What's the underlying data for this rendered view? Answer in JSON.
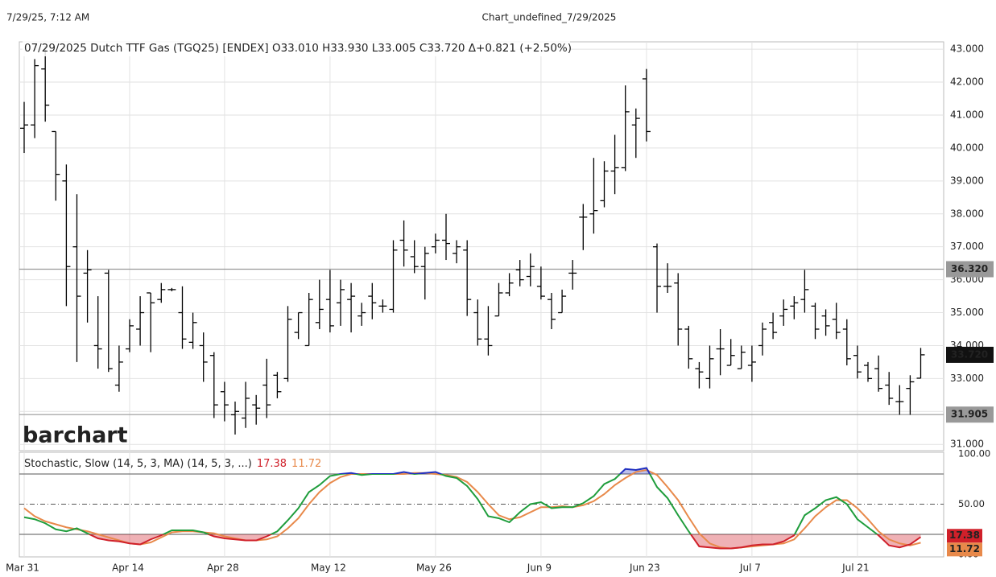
{
  "header": {
    "timestamp": "7/29/25, 7:12 AM",
    "title": "Chart_undefined_7/29/2025"
  },
  "chart_data": [
    {
      "type": "ohlc",
      "title": "07/29/2025 Dutch TTF Gas (TGQ25) [ENDEX] O33.010 H33.930 L33.005 C33.720 Δ+0.821 (+2.50%)",
      "watermark": "barchart",
      "color": "#000000",
      "grid": true,
      "categories": [
        "Mar 31",
        null,
        null,
        null,
        null,
        null,
        null,
        null,
        null,
        null,
        "Apr 14",
        null,
        null,
        null,
        null,
        null,
        null,
        null,
        null,
        "Apr 28",
        null,
        null,
        null,
        null,
        null,
        null,
        null,
        null,
        null,
        "May 12",
        null,
        null,
        null,
        null,
        null,
        null,
        null,
        null,
        null,
        "May 26",
        null,
        null,
        null,
        null,
        null,
        null,
        null,
        null,
        null,
        "Jun 9",
        null,
        null,
        null,
        null,
        null,
        null,
        null,
        null,
        null,
        "Jun 23",
        null,
        null,
        null,
        null,
        null,
        null,
        null,
        null,
        null,
        "Jul 7",
        null,
        null,
        null,
        null,
        null,
        null,
        null,
        null,
        null,
        "Jul 21",
        null,
        null,
        null,
        null,
        null,
        null
      ],
      "open": [
        40.6,
        40.7,
        42.4,
        40.5,
        39.0,
        37.0,
        36.2,
        34.0,
        36.2,
        32.8,
        33.9,
        34.5,
        35.6,
        35.4,
        35.7,
        35.0,
        34.1,
        34.0,
        33.7,
        32.6,
        31.9,
        31.8,
        32.2,
        32.8,
        33.1,
        33.0,
        34.4,
        34.0,
        34.7,
        35.4,
        35.3,
        35.4,
        34.9,
        35.5,
        35.2,
        35.1,
        37.2,
        36.7,
        36.4,
        37.0,
        37.2,
        36.8,
        36.9,
        35.0,
        34.2,
        34.9,
        35.6,
        36.3,
        36.1,
        35.8,
        35.4,
        35.0,
        36.2,
        37.9,
        38.0,
        38.4,
        39.3,
        39.4,
        40.7,
        42.1,
        37.0,
        35.8,
        35.9,
        34.5,
        33.3,
        33.0,
        33.9,
        33.4,
        33.3,
        33.4,
        34.0,
        34.7,
        34.9,
        35.2,
        35.4,
        35.2,
        34.9,
        34.8,
        34.5,
        33.7,
        33.4,
        33.3,
        32.8,
        32.3,
        32.7,
        33.01
      ],
      "high": [
        41.4,
        42.7,
        43.1,
        40.5,
        39.5,
        38.6,
        36.9,
        35.5,
        36.3,
        34.0,
        34.8,
        35.5,
        35.6,
        35.9,
        35.75,
        35.8,
        35.0,
        34.4,
        33.8,
        32.9,
        32.3,
        32.9,
        32.5,
        33.6,
        33.2,
        35.2,
        35.0,
        35.6,
        36.0,
        36.3,
        36.0,
        35.9,
        35.3,
        35.9,
        35.4,
        37.2,
        37.8,
        37.2,
        37.0,
        37.4,
        38.0,
        37.2,
        37.2,
        35.4,
        35.2,
        35.9,
        36.2,
        36.6,
        36.8,
        36.4,
        35.6,
        35.7,
        36.6,
        38.3,
        39.7,
        39.6,
        40.4,
        41.9,
        41.2,
        42.4,
        37.1,
        36.5,
        36.2,
        34.6,
        33.5,
        34.0,
        34.5,
        34.2,
        34.0,
        34.0,
        34.7,
        35.0,
        35.4,
        35.5,
        36.3,
        35.3,
        35.1,
        35.3,
        34.8,
        34.0,
        33.5,
        33.7,
        33.2,
        32.8,
        33.1,
        33.93
      ],
      "low": [
        39.85,
        40.3,
        40.8,
        38.4,
        35.2,
        33.5,
        34.7,
        33.3,
        33.2,
        32.6,
        33.8,
        34.0,
        33.8,
        35.3,
        35.65,
        33.9,
        33.9,
        32.9,
        31.8,
        31.7,
        31.3,
        31.5,
        31.6,
        31.8,
        32.4,
        32.9,
        34.2,
        34.0,
        34.5,
        34.4,
        34.6,
        34.4,
        34.6,
        34.8,
        35.0,
        35.0,
        36.4,
        36.2,
        35.4,
        36.8,
        36.6,
        36.5,
        34.9,
        34.0,
        33.7,
        34.9,
        35.5,
        35.8,
        35.8,
        35.4,
        34.5,
        35.0,
        35.7,
        36.9,
        37.4,
        38.2,
        38.6,
        39.3,
        39.7,
        40.2,
        35.0,
        35.6,
        34.0,
        33.3,
        32.7,
        32.7,
        33.1,
        33.4,
        33.3,
        32.9,
        33.7,
        34.2,
        34.6,
        34.8,
        35.0,
        34.2,
        34.3,
        34.2,
        33.4,
        33.0,
        32.9,
        32.6,
        32.2,
        31.9,
        31.9,
        33.005
      ],
      "close": [
        40.7,
        42.5,
        41.3,
        39.2,
        36.4,
        35.5,
        36.3,
        33.9,
        33.3,
        33.5,
        34.6,
        35.0,
        35.3,
        35.7,
        35.7,
        34.2,
        34.7,
        33.5,
        32.2,
        32.2,
        32.0,
        32.4,
        32.1,
        32.2,
        32.6,
        34.8,
        35.0,
        35.4,
        35.1,
        34.6,
        35.7,
        35.5,
        35.0,
        35.3,
        35.2,
        36.9,
        36.9,
        36.4,
        36.8,
        37.2,
        37.1,
        37.0,
        35.4,
        34.2,
        34.0,
        35.6,
        35.9,
        36.0,
        36.4,
        35.5,
        34.8,
        35.5,
        36.2,
        37.9,
        38.1,
        39.3,
        39.4,
        41.1,
        40.9,
        40.5,
        35.8,
        35.8,
        34.5,
        33.6,
        33.2,
        33.6,
        33.9,
        33.7,
        33.8,
        33.5,
        34.5,
        34.4,
        35.1,
        35.3,
        35.7,
        34.5,
        34.6,
        34.4,
        33.6,
        33.2,
        33.0,
        32.7,
        32.4,
        32.3,
        32.9,
        33.72
      ],
      "ylim": [
        30.81,
        43.15
      ],
      "yticks": [
        {
          "value": 31,
          "label": "31.000"
        },
        {
          "value": 32,
          "label": "32.000"
        },
        {
          "value": 33,
          "label": "33.000"
        },
        {
          "value": 34,
          "label": "34.000"
        },
        {
          "value": 35,
          "label": "35.000"
        },
        {
          "value": 36,
          "label": "36.000"
        },
        {
          "value": 37,
          "label": "37.000"
        },
        {
          "value": 38,
          "label": "38.000"
        },
        {
          "value": 39,
          "label": "39.000"
        },
        {
          "value": 40,
          "label": "40.000"
        },
        {
          "value": 41,
          "label": "41.000"
        },
        {
          "value": 42,
          "label": "42.000"
        },
        {
          "value": 43,
          "label": "43.000"
        }
      ],
      "reference_lines": [
        {
          "value": 36.32,
          "label": "36.320"
        },
        {
          "value": 31.905,
          "label": "31.905"
        }
      ],
      "reference_color": "#999999",
      "last_price": {
        "value": 33.72,
        "label": "33.720"
      }
    },
    {
      "type": "stochastic",
      "title": "Stochastic, Slow (14, 5, 3, MA)  (14, 5, 3, ...)",
      "ylim": [
        -2.4,
        101.6
      ],
      "yticks": [
        {
          "value": 0,
          "label": "0.00"
        },
        {
          "value": 50,
          "label": "50.00"
        },
        {
          "value": 100,
          "label": "100.00"
        }
      ],
      "overbought": 80,
      "oversold": 20,
      "midline": 50,
      "overbought_color": "#2030c0",
      "oversold_color": "#d0202a",
      "series": [
        {
          "color": "#1f9d3c",
          "values": [
            37,
            35,
            31,
            25,
            23,
            26,
            21,
            16,
            14,
            13,
            11,
            10,
            15,
            19,
            24,
            24,
            24,
            22,
            18,
            16,
            15,
            14,
            14,
            18,
            23,
            34,
            46,
            62,
            69,
            78,
            80,
            81,
            79,
            80,
            80,
            80,
            82,
            80,
            81,
            82,
            78,
            76,
            68,
            55,
            38,
            36,
            32,
            42,
            50,
            52,
            46,
            47,
            47,
            51,
            58,
            70,
            75,
            85,
            84,
            86,
            67,
            56,
            39,
            23,
            8,
            7,
            6,
            6,
            7,
            9,
            10,
            10,
            13,
            19,
            39,
            46,
            54,
            57,
            50,
            35,
            27,
            19,
            9,
            7,
            10,
            17.38
          ]
        },
        {
          "color": "#e8894a",
          "values": [
            46,
            38,
            33,
            30,
            27,
            25,
            23,
            20,
            17,
            14,
            11,
            10,
            12,
            17,
            22,
            23,
            23,
            22,
            21,
            18,
            16,
            14,
            14,
            15,
            18,
            26,
            36,
            50,
            62,
            71,
            77,
            80,
            80,
            80,
            80,
            80,
            80,
            81,
            81,
            80,
            79,
            77,
            72,
            62,
            50,
            39,
            35,
            37,
            42,
            47,
            47,
            48,
            47,
            49,
            53,
            60,
            69,
            76,
            82,
            84,
            79,
            67,
            54,
            37,
            21,
            11,
            7,
            6,
            7,
            8,
            9,
            10,
            11,
            15,
            26,
            38,
            47,
            54,
            54,
            46,
            35,
            23,
            15,
            11,
            9,
            11.72
          ]
        }
      ]
    }
  ]
}
